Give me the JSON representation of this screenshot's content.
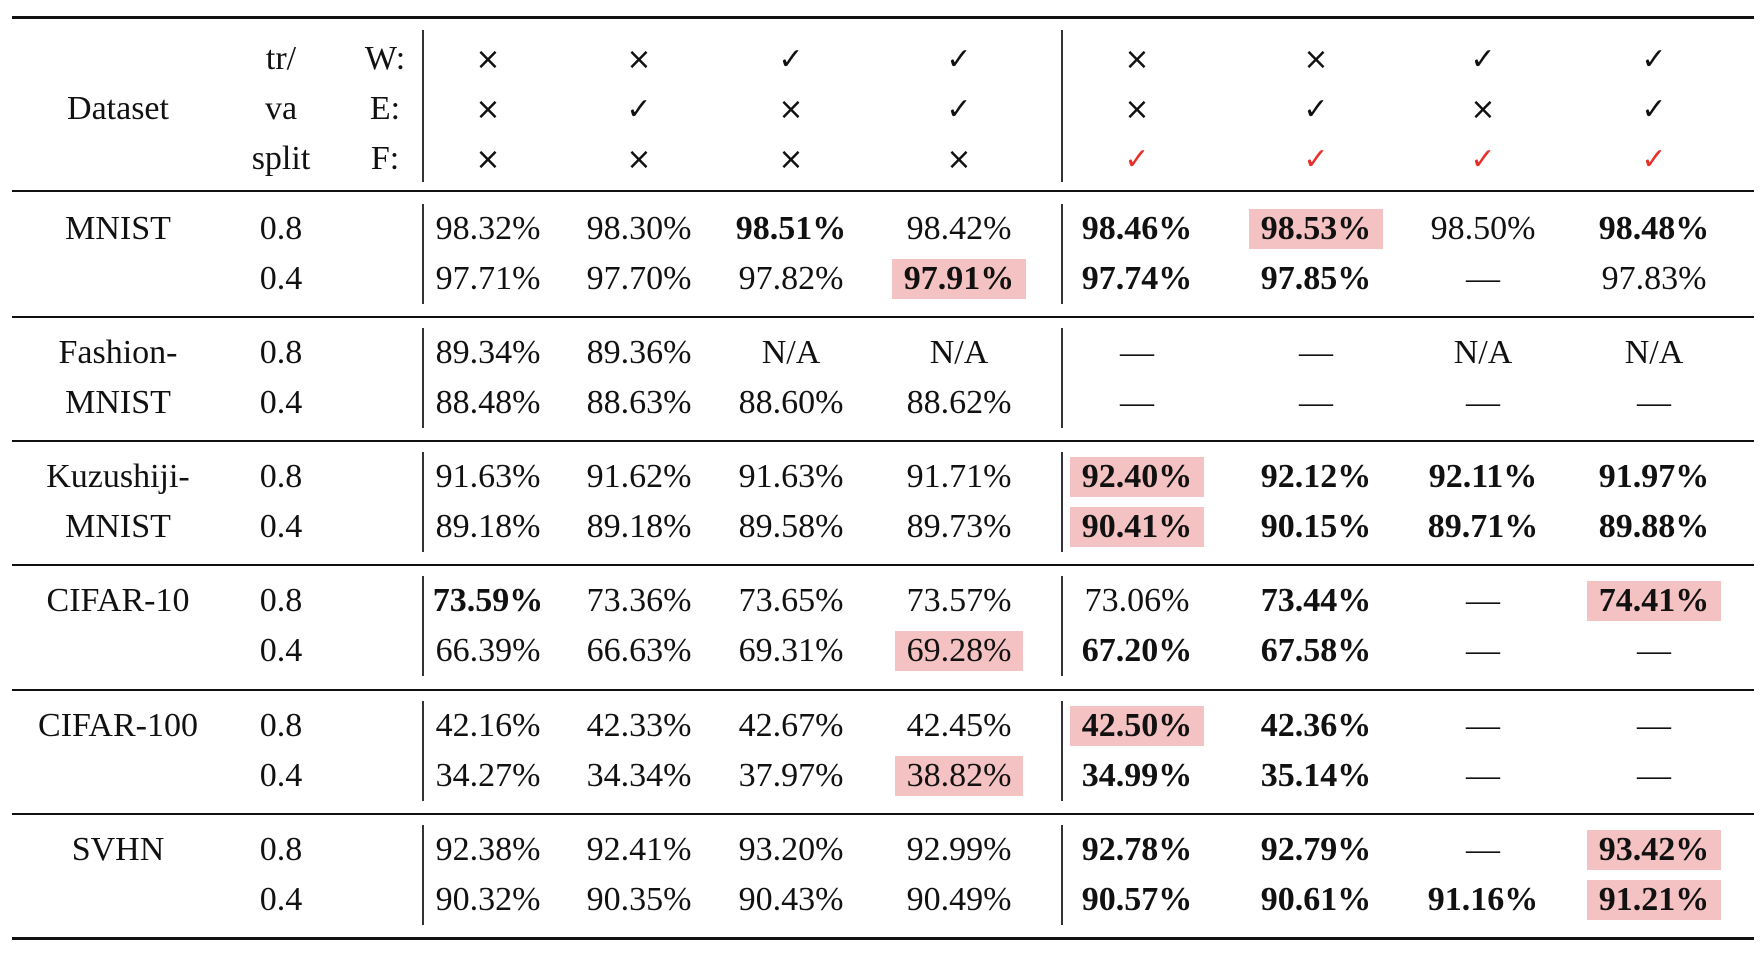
{
  "header": {
    "dataset_label": "Dataset",
    "split_label": [
      "tr/",
      "va",
      "split"
    ],
    "flag_labels": [
      "W:",
      "E:",
      "F:"
    ],
    "flags": [
      [
        "×",
        "×",
        "✓",
        "✓",
        "×",
        "×",
        "✓",
        "✓"
      ],
      [
        "×",
        "✓",
        "×",
        "✓",
        "×",
        "✓",
        "×",
        "✓"
      ],
      [
        "×",
        "×",
        "×",
        "×",
        "✓",
        "✓",
        "✓",
        "✓"
      ]
    ],
    "highlight_color": "#f4c2c2",
    "check_red_color": "#e8302a"
  },
  "groups": [
    {
      "name": [
        "MNIST"
      ],
      "rows": [
        {
          "split": "0.8",
          "cells": [
            {
              "v": "98.32%"
            },
            {
              "v": "98.30%"
            },
            {
              "v": "98.51%",
              "b": true
            },
            {
              "v": "98.42%"
            },
            {
              "v": "98.46%",
              "b": true
            },
            {
              "v": "98.53%",
              "b": true,
              "hl": true
            },
            {
              "v": "98.50%"
            },
            {
              "v": "98.48%",
              "b": true
            }
          ]
        },
        {
          "split": "0.4",
          "cells": [
            {
              "v": "97.71%"
            },
            {
              "v": "97.70%"
            },
            {
              "v": "97.82%"
            },
            {
              "v": "97.91%",
              "b": true,
              "hl": true
            },
            {
              "v": "97.74%",
              "b": true
            },
            {
              "v": "97.85%",
              "b": true
            },
            {
              "v": "—"
            },
            {
              "v": "97.83%"
            }
          ]
        }
      ]
    },
    {
      "name": [
        "Fashion-",
        "MNIST"
      ],
      "rows": [
        {
          "split": "0.8",
          "cells": [
            {
              "v": "89.34%"
            },
            {
              "v": "89.36%"
            },
            {
              "v": "N/A"
            },
            {
              "v": "N/A"
            },
            {
              "v": "—"
            },
            {
              "v": "—"
            },
            {
              "v": "N/A"
            },
            {
              "v": "N/A"
            }
          ]
        },
        {
          "split": "0.4",
          "cells": [
            {
              "v": "88.48%"
            },
            {
              "v": "88.63%"
            },
            {
              "v": "88.60%"
            },
            {
              "v": "88.62%"
            },
            {
              "v": "—"
            },
            {
              "v": "—"
            },
            {
              "v": "—"
            },
            {
              "v": "—"
            }
          ]
        }
      ]
    },
    {
      "name": [
        "Kuzushiji-",
        "MNIST"
      ],
      "rows": [
        {
          "split": "0.8",
          "cells": [
            {
              "v": "91.63%"
            },
            {
              "v": "91.62%"
            },
            {
              "v": "91.63%"
            },
            {
              "v": "91.71%"
            },
            {
              "v": "92.40%",
              "b": true,
              "hl": true
            },
            {
              "v": "92.12%",
              "b": true
            },
            {
              "v": "92.11%",
              "b": true
            },
            {
              "v": "91.97%",
              "b": true
            }
          ]
        },
        {
          "split": "0.4",
          "cells": [
            {
              "v": "89.18%"
            },
            {
              "v": "89.18%"
            },
            {
              "v": "89.58%"
            },
            {
              "v": "89.73%"
            },
            {
              "v": "90.41%",
              "b": true,
              "hl": true
            },
            {
              "v": "90.15%",
              "b": true
            },
            {
              "v": "89.71%",
              "b": true
            },
            {
              "v": "89.88%",
              "b": true
            }
          ]
        }
      ]
    },
    {
      "name": [
        "CIFAR-10"
      ],
      "rows": [
        {
          "split": "0.8",
          "cells": [
            {
              "v": "73.59%",
              "b": true
            },
            {
              "v": "73.36%"
            },
            {
              "v": "73.65%"
            },
            {
              "v": "73.57%"
            },
            {
              "v": "73.06%"
            },
            {
              "v": "73.44%",
              "b": true
            },
            {
              "v": "—"
            },
            {
              "v": "74.41%",
              "b": true,
              "hl": true
            }
          ]
        },
        {
          "split": "0.4",
          "cells": [
            {
              "v": "66.39%"
            },
            {
              "v": "66.63%"
            },
            {
              "v": "69.31%"
            },
            {
              "v": "69.28%",
              "hl": true
            },
            {
              "v": "67.20%",
              "b": true
            },
            {
              "v": "67.58%",
              "b": true
            },
            {
              "v": "—"
            },
            {
              "v": "—"
            }
          ]
        }
      ]
    },
    {
      "name": [
        "CIFAR-100"
      ],
      "rows": [
        {
          "split": "0.8",
          "cells": [
            {
              "v": "42.16%"
            },
            {
              "v": "42.33%"
            },
            {
              "v": "42.67%"
            },
            {
              "v": "42.45%"
            },
            {
              "v": "42.50%",
              "b": true,
              "hl": true
            },
            {
              "v": "42.36%",
              "b": true
            },
            {
              "v": "—"
            },
            {
              "v": "—"
            }
          ]
        },
        {
          "split": "0.4",
          "cells": [
            {
              "v": "34.27%"
            },
            {
              "v": "34.34%"
            },
            {
              "v": "37.97%"
            },
            {
              "v": "38.82%",
              "hl": true
            },
            {
              "v": "34.99%",
              "b": true
            },
            {
              "v": "35.14%",
              "b": true
            },
            {
              "v": "—"
            },
            {
              "v": "—"
            }
          ]
        }
      ]
    },
    {
      "name": [
        "SVHN"
      ],
      "rows": [
        {
          "split": "0.8",
          "cells": [
            {
              "v": "92.38%"
            },
            {
              "v": "92.41%"
            },
            {
              "v": "93.20%"
            },
            {
              "v": "92.99%"
            },
            {
              "v": "92.78%",
              "b": true
            },
            {
              "v": "92.79%",
              "b": true
            },
            {
              "v": "—"
            },
            {
              "v": "93.42%",
              "b": true,
              "hl": true
            }
          ]
        },
        {
          "split": "0.4",
          "cells": [
            {
              "v": "90.32%"
            },
            {
              "v": "90.35%"
            },
            {
              "v": "90.43%"
            },
            {
              "v": "90.49%"
            },
            {
              "v": "90.57%",
              "b": true
            },
            {
              "v": "90.61%",
              "b": true
            },
            {
              "v": "91.16%",
              "b": true
            },
            {
              "v": "91.21%",
              "b": true,
              "hl": true
            }
          ]
        }
      ]
    }
  ]
}
